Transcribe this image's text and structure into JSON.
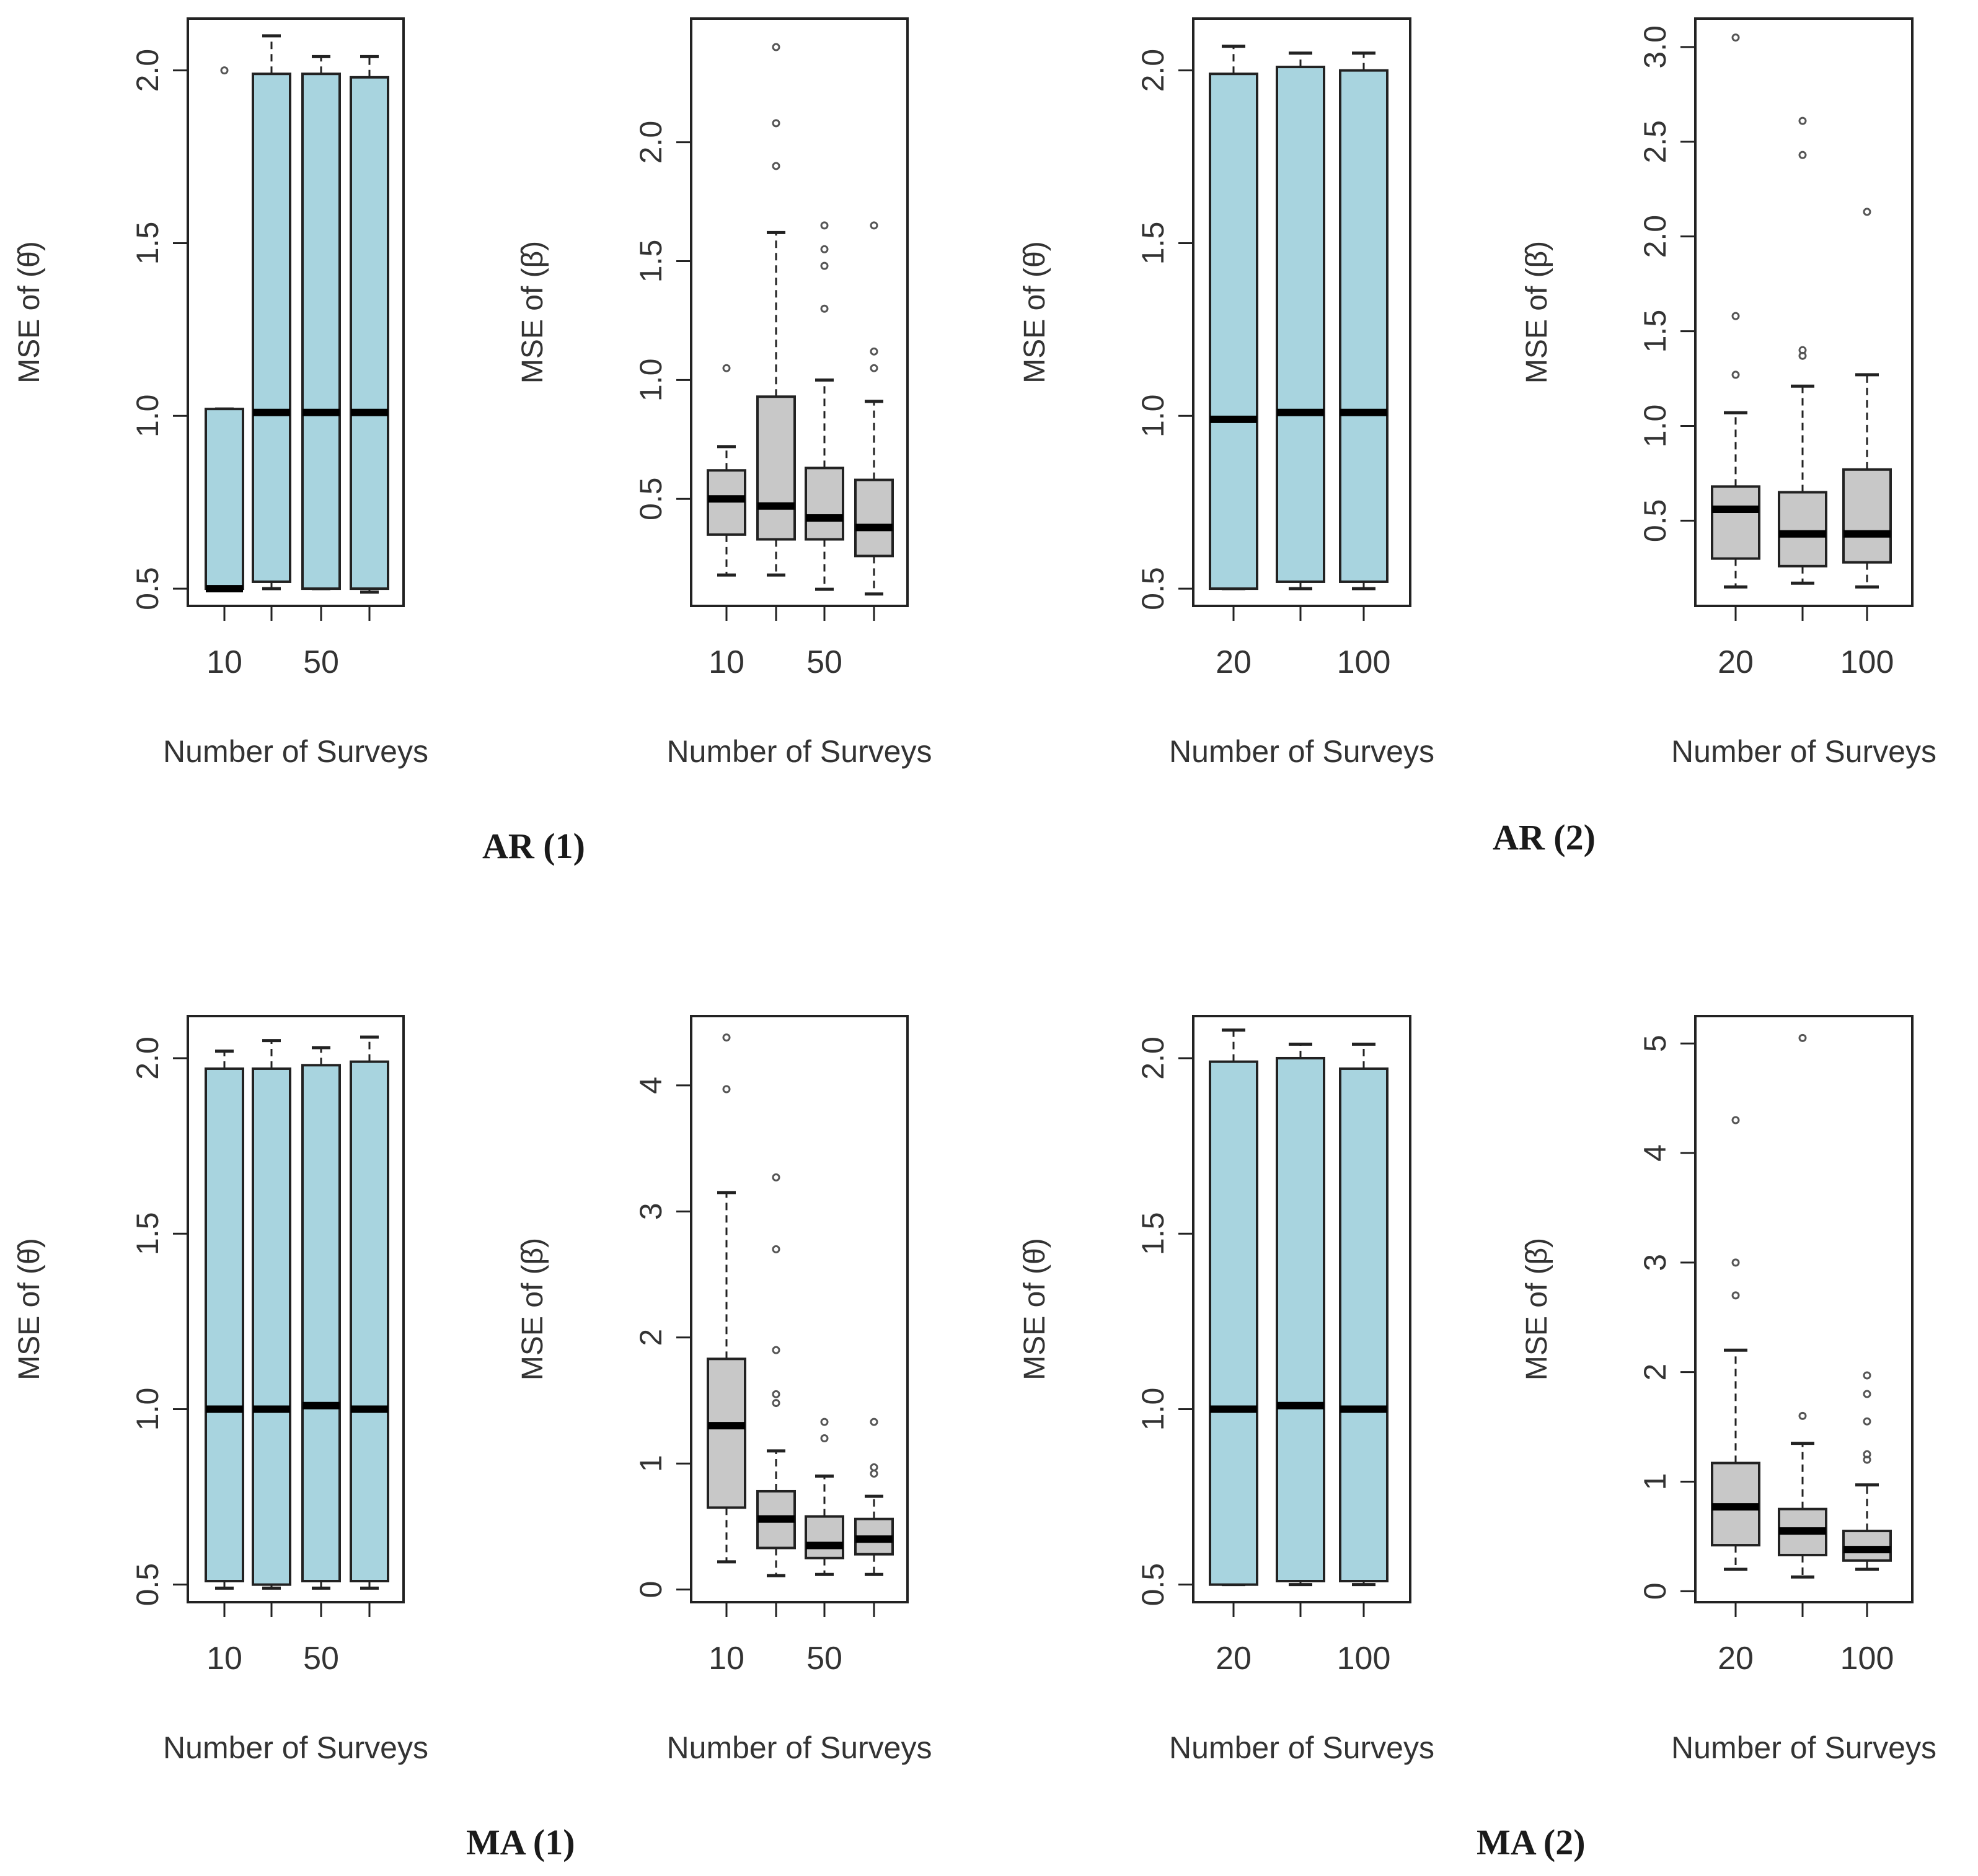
{
  "colors": {
    "blue_box": "#a8d4df",
    "gray_box": "#c8c8c8",
    "axis": "#222222",
    "text": "#333333",
    "median": "#000000"
  },
  "groups": [
    {
      "label": "AR (1)"
    },
    {
      "label": "AR (2)"
    },
    {
      "label": "MA (1)"
    },
    {
      "label": "MA (2)"
    }
  ],
  "chart_data": [
    {
      "type": "box",
      "group": "AR (1)",
      "ylabel": "MSE of (θ̂)",
      "xlabel": "Number of Surveys",
      "xtick_labels": [
        "10",
        "",
        "50",
        ""
      ],
      "ylim": [
        0.45,
        2.15
      ],
      "yticks": [
        0.5,
        1.0,
        1.5,
        2.0
      ],
      "ytick_labels": [
        "0.5",
        "1.0",
        "1.5",
        "2.0"
      ],
      "box_color": "blue",
      "boxes": [
        {
          "lower_whisker": 0.5,
          "q1": 0.5,
          "median": 0.5,
          "q3": 1.02,
          "upper_whisker": 1.02,
          "outliers": [
            2.0
          ]
        },
        {
          "lower_whisker": 0.5,
          "q1": 0.52,
          "median": 1.01,
          "q3": 1.99,
          "upper_whisker": 2.1,
          "outliers": []
        },
        {
          "lower_whisker": 0.5,
          "q1": 0.5,
          "median": 1.01,
          "q3": 1.99,
          "upper_whisker": 2.04,
          "outliers": []
        },
        {
          "lower_whisker": 0.49,
          "q1": 0.5,
          "median": 1.01,
          "q3": 1.98,
          "upper_whisker": 2.04,
          "outliers": []
        }
      ]
    },
    {
      "type": "box",
      "group": "AR (1)",
      "ylabel": "MSE of (β̂)",
      "xlabel": "Number of Surveys",
      "xtick_labels": [
        "10",
        "",
        "50",
        ""
      ],
      "ylim": [
        0.05,
        2.52
      ],
      "yticks": [
        0.5,
        1.0,
        1.5,
        2.0
      ],
      "ytick_labels": [
        "0.5",
        "1.0",
        "1.5",
        "2.0"
      ],
      "box_color": "gray",
      "boxes": [
        {
          "lower_whisker": 0.18,
          "q1": 0.35,
          "median": 0.5,
          "q3": 0.62,
          "upper_whisker": 0.72,
          "outliers": [
            1.05
          ]
        },
        {
          "lower_whisker": 0.18,
          "q1": 0.33,
          "median": 0.47,
          "q3": 0.93,
          "upper_whisker": 1.62,
          "outliers": [
            1.9,
            2.08,
            2.4
          ]
        },
        {
          "lower_whisker": 0.12,
          "q1": 0.33,
          "median": 0.42,
          "q3": 0.63,
          "upper_whisker": 1.0,
          "outliers": [
            1.3,
            1.48,
            1.55,
            1.65
          ]
        },
        {
          "lower_whisker": 0.1,
          "q1": 0.26,
          "median": 0.38,
          "q3": 0.58,
          "upper_whisker": 0.91,
          "outliers": [
            1.05,
            1.12,
            1.65
          ]
        }
      ]
    },
    {
      "type": "box",
      "group": "AR (2)",
      "ylabel": "MSE of (θ̂)",
      "xlabel": "Number of Surveys",
      "xtick_labels": [
        "20",
        "",
        "100"
      ],
      "ylim": [
        0.45,
        2.15
      ],
      "yticks": [
        0.5,
        1.0,
        1.5,
        2.0
      ],
      "ytick_labels": [
        "0.5",
        "1.0",
        "1.5",
        "2.0"
      ],
      "box_color": "blue",
      "boxes": [
        {
          "lower_whisker": 0.5,
          "q1": 0.5,
          "median": 0.99,
          "q3": 1.99,
          "upper_whisker": 2.07,
          "outliers": []
        },
        {
          "lower_whisker": 0.5,
          "q1": 0.52,
          "median": 1.01,
          "q3": 2.01,
          "upper_whisker": 2.05,
          "outliers": []
        },
        {
          "lower_whisker": 0.5,
          "q1": 0.52,
          "median": 1.01,
          "q3": 2.0,
          "upper_whisker": 2.05,
          "outliers": []
        }
      ]
    },
    {
      "type": "box",
      "group": "AR (2)",
      "ylabel": "MSE of (β̂)",
      "xlabel": "Number of Surveys",
      "xtick_labels": [
        "20",
        "",
        "100"
      ],
      "ylim": [
        0.05,
        3.15
      ],
      "yticks": [
        0.5,
        1.0,
        1.5,
        2.0,
        2.5,
        3.0
      ],
      "ytick_labels": [
        "0.5",
        "1.0",
        "1.5",
        "2.0",
        "2.5",
        "3.0"
      ],
      "box_color": "gray",
      "boxes": [
        {
          "lower_whisker": 0.15,
          "q1": 0.3,
          "median": 0.56,
          "q3": 0.68,
          "upper_whisker": 1.07,
          "outliers": [
            1.27,
            1.58,
            3.05
          ]
        },
        {
          "lower_whisker": 0.17,
          "q1": 0.26,
          "median": 0.43,
          "q3": 0.65,
          "upper_whisker": 1.21,
          "outliers": [
            1.37,
            1.4,
            2.43,
            2.61
          ]
        },
        {
          "lower_whisker": 0.15,
          "q1": 0.28,
          "median": 0.43,
          "q3": 0.77,
          "upper_whisker": 1.27,
          "outliers": [
            2.13
          ]
        }
      ]
    },
    {
      "type": "box",
      "group": "MA (1)",
      "ylabel": "MSE of (θ̂)",
      "xlabel": "Number of Surveys",
      "xtick_labels": [
        "10",
        "",
        "50",
        ""
      ],
      "ylim": [
        0.45,
        2.12
      ],
      "yticks": [
        0.5,
        1.0,
        1.5,
        2.0
      ],
      "ytick_labels": [
        "0.5",
        "1.0",
        "1.5",
        "2.0"
      ],
      "box_color": "blue",
      "boxes": [
        {
          "lower_whisker": 0.49,
          "q1": 0.51,
          "median": 1.0,
          "q3": 1.97,
          "upper_whisker": 2.02,
          "outliers": []
        },
        {
          "lower_whisker": 0.49,
          "q1": 0.5,
          "median": 1.0,
          "q3": 1.97,
          "upper_whisker": 2.05,
          "outliers": []
        },
        {
          "lower_whisker": 0.49,
          "q1": 0.51,
          "median": 1.01,
          "q3": 1.98,
          "upper_whisker": 2.03,
          "outliers": []
        },
        {
          "lower_whisker": 0.49,
          "q1": 0.51,
          "median": 1.0,
          "q3": 1.99,
          "upper_whisker": 2.06,
          "outliers": []
        }
      ]
    },
    {
      "type": "box",
      "group": "MA (1)",
      "ylabel": "MSE of (β̂)",
      "xlabel": "Number of Surveys",
      "xtick_labels": [
        "10",
        "",
        "50",
        ""
      ],
      "ylim": [
        -0.1,
        4.55
      ],
      "yticks": [
        0,
        1,
        2,
        3,
        4
      ],
      "ytick_labels": [
        "0",
        "1",
        "2",
        "3",
        "4"
      ],
      "box_color": "gray",
      "boxes": [
        {
          "lower_whisker": 0.22,
          "q1": 0.65,
          "median": 1.3,
          "q3": 1.83,
          "upper_whisker": 3.15,
          "outliers": [
            3.97,
            4.38
          ]
        },
        {
          "lower_whisker": 0.11,
          "q1": 0.33,
          "median": 0.56,
          "q3": 0.78,
          "upper_whisker": 1.1,
          "outliers": [
            1.48,
            1.55,
            1.9,
            2.7,
            3.27
          ]
        },
        {
          "lower_whisker": 0.12,
          "q1": 0.25,
          "median": 0.35,
          "q3": 0.58,
          "upper_whisker": 0.9,
          "outliers": [
            1.2,
            1.33
          ]
        },
        {
          "lower_whisker": 0.12,
          "q1": 0.28,
          "median": 0.4,
          "q3": 0.56,
          "upper_whisker": 0.74,
          "outliers": [
            0.92,
            0.97,
            1.33
          ]
        }
      ]
    },
    {
      "type": "box",
      "group": "MA (2)",
      "ylabel": "MSE of (θ̂)",
      "xlabel": "Number of Surveys",
      "xtick_labels": [
        "20",
        "",
        "100"
      ],
      "ylim": [
        0.45,
        2.12
      ],
      "yticks": [
        0.5,
        1.0,
        1.5,
        2.0
      ],
      "ytick_labels": [
        "0.5",
        "1.0",
        "1.5",
        "2.0"
      ],
      "box_color": "blue",
      "boxes": [
        {
          "lower_whisker": 0.5,
          "q1": 0.5,
          "median": 1.0,
          "q3": 1.99,
          "upper_whisker": 2.08,
          "outliers": []
        },
        {
          "lower_whisker": 0.5,
          "q1": 0.51,
          "median": 1.01,
          "q3": 2.0,
          "upper_whisker": 2.04,
          "outliers": []
        },
        {
          "lower_whisker": 0.5,
          "q1": 0.51,
          "median": 1.0,
          "q3": 1.97,
          "upper_whisker": 2.04,
          "outliers": []
        }
      ]
    },
    {
      "type": "box",
      "group": "MA (2)",
      "ylabel": "MSE of (β̂)",
      "xlabel": "Number of Surveys",
      "xtick_labels": [
        "20",
        "",
        "100"
      ],
      "ylim": [
        -0.1,
        5.25
      ],
      "yticks": [
        0,
        1,
        2,
        3,
        4,
        5
      ],
      "ytick_labels": [
        "0",
        "1",
        "2",
        "3",
        "4",
        "5"
      ],
      "box_color": "gray",
      "boxes": [
        {
          "lower_whisker": 0.2,
          "q1": 0.42,
          "median": 0.77,
          "q3": 1.17,
          "upper_whisker": 2.2,
          "outliers": [
            2.7,
            3.0,
            4.3
          ]
        },
        {
          "lower_whisker": 0.13,
          "q1": 0.33,
          "median": 0.55,
          "q3": 0.75,
          "upper_whisker": 1.35,
          "outliers": [
            1.6,
            5.05
          ]
        },
        {
          "lower_whisker": 0.2,
          "q1": 0.28,
          "median": 0.38,
          "q3": 0.55,
          "upper_whisker": 0.97,
          "outliers": [
            1.2,
            1.25,
            1.55,
            1.8,
            1.97
          ]
        }
      ]
    }
  ]
}
